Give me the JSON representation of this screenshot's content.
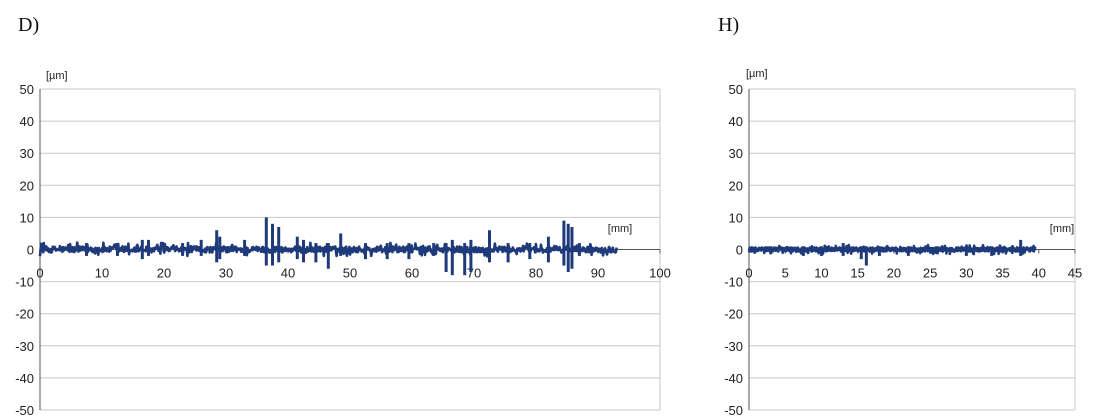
{
  "panels": [
    {
      "label": "D)"
    },
    {
      "label": "H)"
    }
  ],
  "chart_data": [
    {
      "type": "line",
      "panel": "D)",
      "ylabel": "[µm]",
      "xlabel": "[mm]",
      "xlim": [
        0,
        100
      ],
      "ylim": [
        -50,
        50
      ],
      "xticks": [
        "0",
        "10",
        "20",
        "30",
        "40",
        "50",
        "60",
        "70",
        "80",
        "90",
        "100"
      ],
      "yticks": [
        "50",
        "40",
        "30",
        "20",
        "10",
        "0",
        "-10",
        "-20",
        "-30",
        "-40",
        "-50"
      ],
      "grid": "horizontal",
      "series_color": "#1f3a7a",
      "x_extent": [
        0,
        93
      ],
      "baseline": 0,
      "noise_amplitude": 1.2,
      "spikes": [
        {
          "x": 7.5,
          "min": -2,
          "max": 2
        },
        {
          "x": 12.5,
          "min": -2,
          "max": 2
        },
        {
          "x": 16.5,
          "min": -3,
          "max": 3
        },
        {
          "x": 17.5,
          "min": -2,
          "max": 3
        },
        {
          "x": 23,
          "min": -2,
          "max": 2
        },
        {
          "x": 26,
          "min": -2,
          "max": 3
        },
        {
          "x": 28.5,
          "min": -4,
          "max": 6
        },
        {
          "x": 29,
          "min": -3,
          "max": 4
        },
        {
          "x": 33,
          "min": -2,
          "max": 3
        },
        {
          "x": 36.5,
          "min": -5,
          "max": 10
        },
        {
          "x": 37.5,
          "min": -5,
          "max": 8
        },
        {
          "x": 38.5,
          "min": -4,
          "max": 7
        },
        {
          "x": 41.5,
          "min": -3,
          "max": 4
        },
        {
          "x": 42.5,
          "min": -4,
          "max": 3
        },
        {
          "x": 44.5,
          "min": -4,
          "max": 2
        },
        {
          "x": 46.5,
          "min": -6,
          "max": 2
        },
        {
          "x": 48.5,
          "min": -2,
          "max": 5
        },
        {
          "x": 52.5,
          "min": -3,
          "max": 2
        },
        {
          "x": 56,
          "min": -3,
          "max": 2
        },
        {
          "x": 59.5,
          "min": -3,
          "max": 2
        },
        {
          "x": 63.5,
          "min": -2,
          "max": 2
        },
        {
          "x": 65.5,
          "min": -7,
          "max": 2
        },
        {
          "x": 66.5,
          "min": -8,
          "max": 3
        },
        {
          "x": 68.5,
          "min": -8,
          "max": 2
        },
        {
          "x": 69.5,
          "min": -7,
          "max": 3
        },
        {
          "x": 72.5,
          "min": -4,
          "max": 6
        },
        {
          "x": 75.5,
          "min": -4,
          "max": 2
        },
        {
          "x": 79,
          "min": -3,
          "max": 2
        },
        {
          "x": 82,
          "min": -4,
          "max": 4
        },
        {
          "x": 84.5,
          "min": -5,
          "max": 9
        },
        {
          "x": 85.2,
          "min": -7,
          "max": 8
        },
        {
          "x": 85.8,
          "min": -6,
          "max": 7
        },
        {
          "x": 87,
          "min": -2,
          "max": 2
        }
      ]
    },
    {
      "type": "line",
      "panel": "H)",
      "ylabel": "[µm]",
      "xlabel": "[mm]",
      "xlim": [
        0,
        45
      ],
      "ylim": [
        -50,
        50
      ],
      "xticks": [
        "0",
        "5",
        "10",
        "15",
        "20",
        "25",
        "30",
        "35",
        "40",
        "45"
      ],
      "yticks": [
        "50",
        "40",
        "30",
        "20",
        "10",
        "0",
        "-10",
        "-20",
        "-30",
        "-40",
        "-50"
      ],
      "grid": "horizontal",
      "series_color": "#1f3a7a",
      "x_extent": [
        0,
        39.5
      ],
      "baseline": 0,
      "noise_amplitude": 0.8,
      "spikes": [
        {
          "x": 3,
          "min": -1.5,
          "max": 1
        },
        {
          "x": 7.5,
          "min": -2,
          "max": 1
        },
        {
          "x": 10,
          "min": -2,
          "max": 1
        },
        {
          "x": 13,
          "min": -2,
          "max": 2
        },
        {
          "x": 15.5,
          "min": -3,
          "max": 1
        },
        {
          "x": 16.2,
          "min": -5,
          "max": 1
        },
        {
          "x": 18,
          "min": -2,
          "max": 1
        },
        {
          "x": 22,
          "min": -2,
          "max": 1
        },
        {
          "x": 26,
          "min": -1.5,
          "max": 1
        },
        {
          "x": 30,
          "min": -2,
          "max": 1
        },
        {
          "x": 33.5,
          "min": -2,
          "max": 1
        },
        {
          "x": 37.5,
          "min": -2,
          "max": 3
        }
      ]
    }
  ]
}
